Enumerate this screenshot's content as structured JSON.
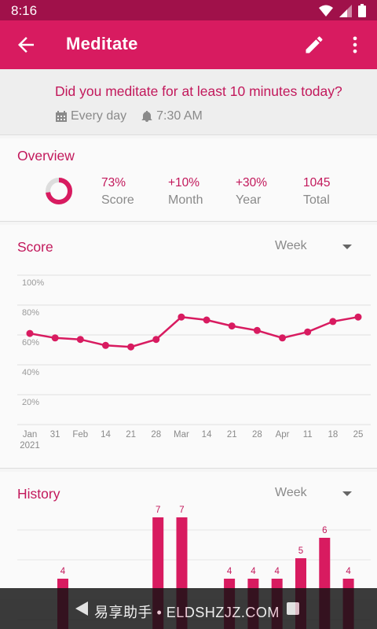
{
  "status_bar": {
    "time": "8:16"
  },
  "app_bar": {
    "title": "Meditate"
  },
  "habit": {
    "question": "Did you meditate for at least 10 minutes today?",
    "frequency": "Every day",
    "reminder": "7:30 AM"
  },
  "overview": {
    "title": "Overview",
    "score_percent": 73,
    "stats": [
      {
        "value": "73%",
        "label": "Score"
      },
      {
        "value": "+10%",
        "label": "Month"
      },
      {
        "value": "+30%",
        "label": "Year"
      },
      {
        "value": "1045",
        "label": "Total"
      }
    ]
  },
  "score_section": {
    "title": "Score",
    "period": "Week",
    "y_ticks": [
      "100%",
      "80%",
      "60%",
      "40%",
      "20%"
    ],
    "x_ticks": [
      "Jan",
      "31",
      "Feb",
      "14",
      "21",
      "28",
      "Mar",
      "14",
      "21",
      "28",
      "Apr",
      "11",
      "18",
      "25"
    ],
    "year_label": "2021",
    "accent": "#d81b60"
  },
  "chart_data": {
    "type": "line",
    "title": "Score",
    "xlabel": "",
    "ylabel": "",
    "x": [
      "Jan",
      "31",
      "Feb",
      "14",
      "21",
      "28",
      "Mar",
      "14",
      "21",
      "28",
      "Apr",
      "11",
      "18",
      "25"
    ],
    "values": [
      61,
      58,
      57,
      53,
      52,
      57,
      72,
      70,
      66,
      63,
      58,
      62,
      69,
      72
    ],
    "ylim": [
      0,
      100
    ],
    "grid": true
  },
  "history_section": {
    "title": "History",
    "period": "Week",
    "bars": [
      {
        "label": "4",
        "value": 4
      },
      {
        "label": "",
        "value": 0
      },
      {
        "label": "",
        "value": 0
      },
      {
        "label": "",
        "value": 0
      },
      {
        "label": "7",
        "value": 7
      },
      {
        "label": "7",
        "value": 7
      },
      {
        "label": "",
        "value": 0
      },
      {
        "label": "4",
        "value": 4
      },
      {
        "label": "4",
        "value": 4
      },
      {
        "label": "4",
        "value": 4
      },
      {
        "label": "5",
        "value": 5
      },
      {
        "label": "6",
        "value": 6
      },
      {
        "label": "4",
        "value": 4
      }
    ]
  },
  "nav_bar": {
    "watermark": "易享助手 • ELDSHZJZ.COM"
  }
}
